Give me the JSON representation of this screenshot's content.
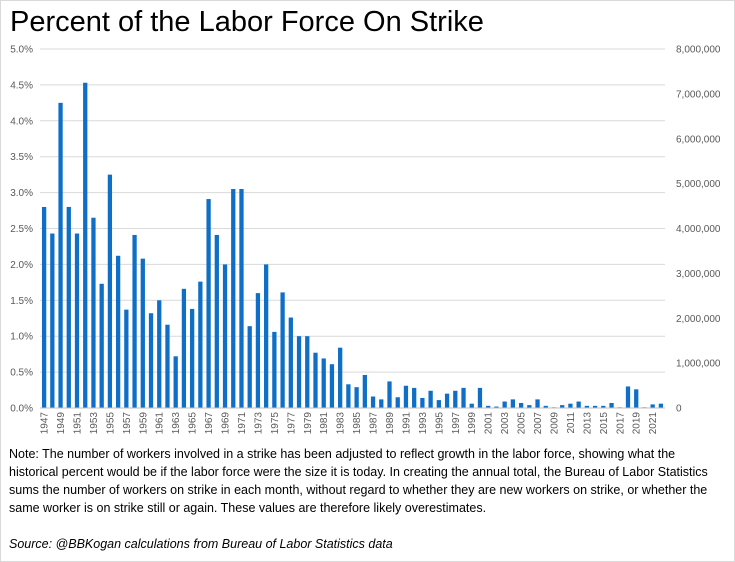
{
  "title": "Percent of the Labor Force On Strike",
  "note": "Note: The number of workers involved in a strike has been adjusted to reflect growth in the labor force, showing what the historical percent would be if the labor force were the size it is today. In creating the annual total, the Bureau of Labor Statistics sums the number of workers on strike in each month, without regard to whether they are new workers on strike, or whether the same worker is on strike still or again. These values are therefore likely overestimates.",
  "source": "Source: @BBKogan calculations from Bureau of Labor Statistics data",
  "colors": {
    "bar": "#0f6fc6",
    "gridline": "#d9d9d9",
    "axis": "#bfbfbf",
    "tick_text": "#595959"
  },
  "chart_data": {
    "type": "bar",
    "title": "Percent of the Labor Force On Strike",
    "xlabel": "",
    "ylabel": "",
    "ylim": [
      0,
      5.0
    ],
    "y2lim": [
      0,
      8000000
    ],
    "grid": true,
    "legend": "none",
    "y_ticks": [
      "0.0%",
      "0.5%",
      "1.0%",
      "1.5%",
      "2.0%",
      "2.5%",
      "3.0%",
      "3.5%",
      "4.0%",
      "4.5%",
      "5.0%"
    ],
    "y2_ticks": [
      "0",
      "1,000,000",
      "2,000,000",
      "3,000,000",
      "4,000,000",
      "5,000,000",
      "6,000,000",
      "7,000,000",
      "8,000,000"
    ],
    "categories": [
      "1947",
      "1948",
      "1949",
      "1950",
      "1951",
      "1952",
      "1953",
      "1954",
      "1955",
      "1956",
      "1957",
      "1958",
      "1959",
      "1960",
      "1961",
      "1962",
      "1963",
      "1964",
      "1965",
      "1966",
      "1967",
      "1968",
      "1969",
      "1970",
      "1971",
      "1972",
      "1973",
      "1974",
      "1975",
      "1976",
      "1977",
      "1978",
      "1979",
      "1980",
      "1981",
      "1982",
      "1983",
      "1984",
      "1985",
      "1986",
      "1987",
      "1988",
      "1989",
      "1990",
      "1991",
      "1992",
      "1993",
      "1994",
      "1995",
      "1996",
      "1997",
      "1998",
      "1999",
      "2000",
      "2001",
      "2002",
      "2003",
      "2004",
      "2005",
      "2006",
      "2007",
      "2008",
      "2009",
      "2010",
      "2011",
      "2012",
      "2013",
      "2014",
      "2015",
      "2016",
      "2017",
      "2018",
      "2019",
      "2020",
      "2021",
      "2022"
    ],
    "x_tick_labels": [
      "1947",
      "1949",
      "1951",
      "1953",
      "1955",
      "1957",
      "1959",
      "1961",
      "1963",
      "1965",
      "1967",
      "1969",
      "1971",
      "1973",
      "1975",
      "1977",
      "1979",
      "1981",
      "1983",
      "1985",
      "1987",
      "1989",
      "1991",
      "1993",
      "1995",
      "1997",
      "1999",
      "2001",
      "2003",
      "2005",
      "2007",
      "2009",
      "2011",
      "2013",
      "2015",
      "2017",
      "2019",
      "2021"
    ],
    "values": [
      2.8,
      2.43,
      4.25,
      2.8,
      2.43,
      4.53,
      2.65,
      1.73,
      3.25,
      2.12,
      1.37,
      2.41,
      2.08,
      1.32,
      1.5,
      1.16,
      0.72,
      1.66,
      1.38,
      1.76,
      2.91,
      2.41,
      2.0,
      3.05,
      3.05,
      1.14,
      1.6,
      2.0,
      1.06,
      1.61,
      1.26,
      1.0,
      1.0,
      0.77,
      0.69,
      0.61,
      0.84,
      0.33,
      0.29,
      0.46,
      0.16,
      0.12,
      0.37,
      0.15,
      0.31,
      0.28,
      0.14,
      0.24,
      0.11,
      0.2,
      0.24,
      0.28,
      0.06,
      0.28,
      0.03,
      0.02,
      0.09,
      0.12,
      0.07,
      0.04,
      0.12,
      0.03,
      0.01,
      0.04,
      0.06,
      0.09,
      0.03,
      0.03,
      0.03,
      0.07,
      0.01,
      0.3,
      0.26,
      0.01,
      0.05,
      0.06
    ]
  }
}
